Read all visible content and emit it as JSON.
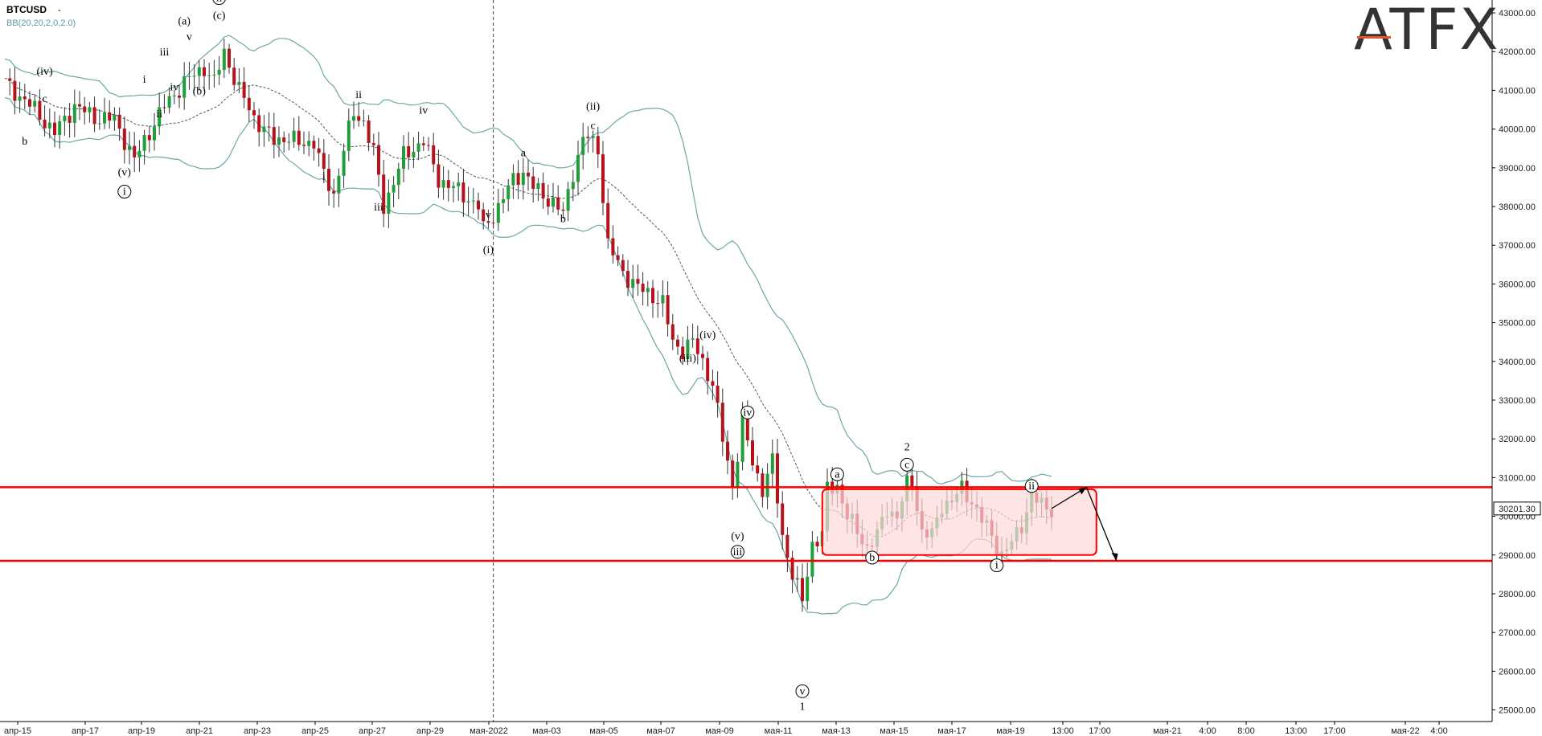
{
  "header": {
    "symbol": "BTCUSD",
    "symbol_suffix": "-",
    "indicator": "BB(20,20,2,0,2.0)"
  },
  "logo": {
    "text": "ATFX",
    "accent_color": "#e8552c"
  },
  "colors": {
    "bull": "#1f9e3a",
    "bear": "#b5121b",
    "band": "#6aa7a8",
    "level": "#ff0000",
    "zone_fill": "#ffd9dc",
    "zone_border": "#ff0000"
  },
  "chart_data": {
    "type": "candlestick",
    "ylim": [
      24700,
      43250
    ],
    "y_ticks": [
      25000,
      26000,
      27000,
      28000,
      29000,
      30000,
      31000,
      32000,
      33000,
      34000,
      35000,
      36000,
      37000,
      38000,
      39000,
      40000,
      41000,
      42000,
      43000
    ],
    "y_tick_labels": [
      "25000.00",
      "26000.00",
      "27000.00",
      "28000.00",
      "29000.00",
      "30000.00",
      "31000.00",
      "32000.00",
      "33000.00",
      "34000.00",
      "35000.00",
      "36000.00",
      "37000.00",
      "38000.00",
      "39000.00",
      "40000.00",
      "41000.00",
      "42000.00",
      "43000.00"
    ],
    "x_ticks": [
      "апр-15",
      "апр-17",
      "апр-19",
      "апр-21",
      "апр-23",
      "апр-25",
      "апр-27",
      "апр-29",
      "мая-2022",
      "мая-03",
      "мая-05",
      "мая-07",
      "мая-09",
      "мая-11",
      "мая-13",
      "мая-15",
      "мая-17",
      "мая-19",
      "13:00",
      "17:00",
      "мая-21",
      "4:00",
      "8:00",
      "13:00",
      "17:00",
      "мая-22",
      "4:00"
    ],
    "last_price_label": "30201.30",
    "last_price": 30201.3,
    "horizontal_levels": [
      30750,
      28850
    ],
    "range_box": {
      "y_top": 30700,
      "y_bottom": 29000
    },
    "projection": {
      "up_to": 30750,
      "down_to": 28850
    },
    "close_path": [
      [
        0,
        41200
      ],
      [
        6,
        40500
      ],
      [
        10,
        39900
      ],
      [
        14,
        40600
      ],
      [
        18,
        40300
      ],
      [
        22,
        40250
      ],
      [
        26,
        39200
      ],
      [
        28,
        39700
      ],
      [
        32,
        40600
      ],
      [
        36,
        41200
      ],
      [
        40,
        41600
      ],
      [
        42,
        41200
      ],
      [
        44,
        42000
      ],
      [
        47,
        41000
      ],
      [
        50,
        40300
      ],
      [
        54,
        39700
      ],
      [
        57,
        39800
      ],
      [
        59,
        39600
      ],
      [
        62,
        39700
      ],
      [
        64,
        38800
      ],
      [
        66,
        38300
      ],
      [
        68,
        39500
      ],
      [
        70,
        40400
      ],
      [
        72,
        40200
      ],
      [
        74,
        39400
      ],
      [
        76,
        38000
      ],
      [
        80,
        39300
      ],
      [
        84,
        39700
      ],
      [
        87,
        38700
      ],
      [
        91,
        38400
      ],
      [
        95,
        38000
      ],
      [
        96,
        37400
      ],
      [
        99,
        38000
      ],
      [
        102,
        38700
      ],
      [
        104,
        38900
      ],
      [
        106,
        38500
      ],
      [
        108,
        38300
      ],
      [
        110,
        38100
      ],
      [
        112,
        37800
      ],
      [
        114,
        38900
      ],
      [
        116,
        39700
      ],
      [
        117,
        39800
      ],
      [
        119,
        39500
      ],
      [
        121,
        37000
      ],
      [
        124,
        36300
      ],
      [
        127,
        35900
      ],
      [
        130,
        35700
      ],
      [
        132,
        35500
      ],
      [
        134,
        34500
      ],
      [
        136,
        34300
      ],
      [
        138,
        34500
      ],
      [
        140,
        34000
      ],
      [
        142,
        33400
      ],
      [
        144,
        32000
      ],
      [
        146,
        30800
      ],
      [
        148,
        32400
      ],
      [
        150,
        31400
      ],
      [
        152,
        30700
      ],
      [
        154,
        31400
      ],
      [
        156,
        29500
      ],
      [
        158,
        28500
      ],
      [
        160,
        27800
      ],
      [
        162,
        29300
      ],
      [
        164,
        29500
      ],
      [
        165,
        30700
      ],
      [
        167,
        30800
      ],
      [
        169,
        30000
      ],
      [
        171,
        29600
      ],
      [
        173,
        29200
      ],
      [
        175,
        29500
      ],
      [
        177,
        30200
      ],
      [
        179,
        30000
      ],
      [
        181,
        30800
      ],
      [
        182,
        30900
      ],
      [
        184,
        29600
      ],
      [
        186,
        29500
      ],
      [
        188,
        30300
      ],
      [
        190,
        30400
      ],
      [
        192,
        30700
      ],
      [
        194,
        30400
      ],
      [
        196,
        29900
      ],
      [
        198,
        29500
      ],
      [
        200,
        29000
      ],
      [
        202,
        29300
      ],
      [
        204,
        29800
      ],
      [
        206,
        30500
      ],
      [
        208,
        30300
      ],
      [
        210,
        30200
      ]
    ],
    "wave_labels": [
      {
        "text": "b",
        "i": 4,
        "v": 39600,
        "pos": "below"
      },
      {
        "text": "c",
        "i": 8,
        "v": 40700,
        "pos": "above"
      },
      {
        "text": "(iv)",
        "i": 8,
        "v": 41400,
        "pos": "above"
      },
      {
        "text": "(v)",
        "i": 24,
        "v": 38800,
        "pos": "below"
      },
      {
        "text": "i",
        "i": 24,
        "v": 38300,
        "pos": "below",
        "circle": true
      },
      {
        "text": "i",
        "i": 28,
        "v": 41200,
        "pos": "above"
      },
      {
        "text": "ii",
        "i": 31,
        "v": 40300,
        "pos": "below"
      },
      {
        "text": "iii",
        "i": 32,
        "v": 41900,
        "pos": "above"
      },
      {
        "text": "iv",
        "i": 34,
        "v": 41000,
        "pos": "below"
      },
      {
        "text": "(b)",
        "i": 39,
        "v": 40900,
        "pos": "below"
      },
      {
        "text": "v",
        "i": 37,
        "v": 42300,
        "pos": "above"
      },
      {
        "text": "(a)",
        "i": 36,
        "v": 42700,
        "pos": "above"
      },
      {
        "text": "(c)",
        "i": 43,
        "v": 42850,
        "pos": "above"
      },
      {
        "text": "ii",
        "i": 43,
        "v": 43300,
        "pos": "above",
        "circle": true
      },
      {
        "text": "i",
        "i": 64,
        "v": 38700,
        "pos": "below"
      },
      {
        "text": "ii",
        "i": 71,
        "v": 40800,
        "pos": "above"
      },
      {
        "text": "iii",
        "i": 75,
        "v": 37900,
        "pos": "below"
      },
      {
        "text": "iv",
        "i": 84,
        "v": 40400,
        "pos": "above"
      },
      {
        "text": "v",
        "i": 97,
        "v": 37700,
        "pos": "below"
      },
      {
        "text": "(i)",
        "i": 97,
        "v": 36800,
        "pos": "below"
      },
      {
        "text": "a",
        "i": 104,
        "v": 39300,
        "pos": "above"
      },
      {
        "text": "b",
        "i": 112,
        "v": 37600,
        "pos": "below"
      },
      {
        "text": "c",
        "i": 118,
        "v": 40000,
        "pos": "above"
      },
      {
        "text": "(ii)",
        "i": 118,
        "v": 40500,
        "pos": "above"
      },
      {
        "text": "(iii)",
        "i": 137,
        "v": 34000,
        "pos": "below"
      },
      {
        "text": "(iv)",
        "i": 141,
        "v": 34600,
        "pos": "above"
      },
      {
        "text": "iv",
        "i": 149,
        "v": 32600,
        "pos": "above",
        "circle": true
      },
      {
        "text": "(v)",
        "i": 147,
        "v": 29400,
        "pos": "below"
      },
      {
        "text": "iii",
        "i": 147,
        "v": 29000,
        "pos": "below",
        "circle": true
      },
      {
        "text": "v",
        "i": 160,
        "v": 25400,
        "pos": "below",
        "circle": true
      },
      {
        "text": "1",
        "i": 160,
        "v": 25000,
        "pos": "below",
        "big": true
      },
      {
        "text": "a",
        "i": 167,
        "v": 31000,
        "pos": "above",
        "circle": true
      },
      {
        "text": "b",
        "i": 174,
        "v": 28850,
        "pos": "below",
        "circle": true
      },
      {
        "text": "c",
        "i": 181,
        "v": 31250,
        "pos": "above",
        "circle": true
      },
      {
        "text": "2",
        "i": 181,
        "v": 31700,
        "pos": "above",
        "big": true
      },
      {
        "text": "i",
        "i": 199,
        "v": 28650,
        "pos": "below",
        "circle": true
      },
      {
        "text": "ii",
        "i": 206,
        "v": 30700,
        "pos": "above",
        "circle": true
      }
    ]
  }
}
